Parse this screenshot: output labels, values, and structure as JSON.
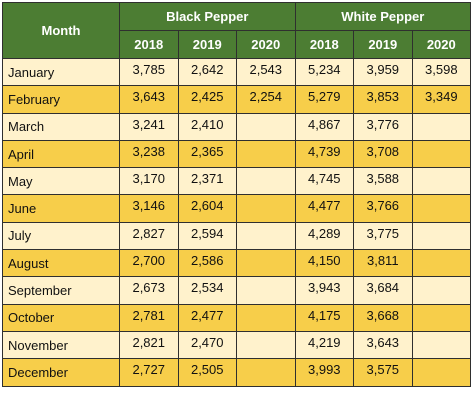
{
  "table": {
    "month_header": "Month",
    "groups": [
      "Black Pepper",
      "White Pepper"
    ],
    "years": [
      "2018",
      "2019",
      "2020"
    ],
    "rows": [
      {
        "month": "January",
        "black": [
          "3,785",
          "2,642",
          "2,543"
        ],
        "white": [
          "5,234",
          "3,959",
          "3,598"
        ]
      },
      {
        "month": "February",
        "black": [
          "3,643",
          "2,425",
          "2,254"
        ],
        "white": [
          "5,279",
          "3,853",
          "3,349"
        ]
      },
      {
        "month": "March",
        "black": [
          "3,241",
          "2,410",
          ""
        ],
        "white": [
          "4,867",
          "3,776",
          ""
        ]
      },
      {
        "month": "April",
        "black": [
          "3,238",
          "2,365",
          ""
        ],
        "white": [
          "4,739",
          "3,708",
          ""
        ]
      },
      {
        "month": "May",
        "black": [
          "3,170",
          "2,371",
          ""
        ],
        "white": [
          "4,745",
          "3,588",
          ""
        ]
      },
      {
        "month": "June",
        "black": [
          "3,146",
          "2,604",
          ""
        ],
        "white": [
          "4,477",
          "3,766",
          ""
        ]
      },
      {
        "month": "July",
        "black": [
          "2,827",
          "2,594",
          ""
        ],
        "white": [
          "4,289",
          "3,775",
          ""
        ]
      },
      {
        "month": "August",
        "black": [
          "2,700",
          "2,586",
          ""
        ],
        "white": [
          "4,150",
          "3,811",
          ""
        ]
      },
      {
        "month": "September",
        "black": [
          "2,673",
          "2,534",
          ""
        ],
        "white": [
          "3,943",
          "3,684",
          ""
        ]
      },
      {
        "month": "October",
        "black": [
          "2,781",
          "2,477",
          ""
        ],
        "white": [
          "4,175",
          "3,668",
          ""
        ]
      },
      {
        "month": "November",
        "black": [
          "2,821",
          "2,470",
          ""
        ],
        "white": [
          "4,219",
          "3,643",
          ""
        ]
      },
      {
        "month": "December",
        "black": [
          "2,727",
          "2,505",
          ""
        ],
        "white": [
          "3,993",
          "3,575",
          ""
        ]
      }
    ]
  },
  "colors": {
    "header_bg": "#4c7d33",
    "header_text": "#ffffff",
    "row_light": "#fff2cc",
    "row_dark": "#f7ce4a",
    "grid_line": "#2f2f2f"
  }
}
